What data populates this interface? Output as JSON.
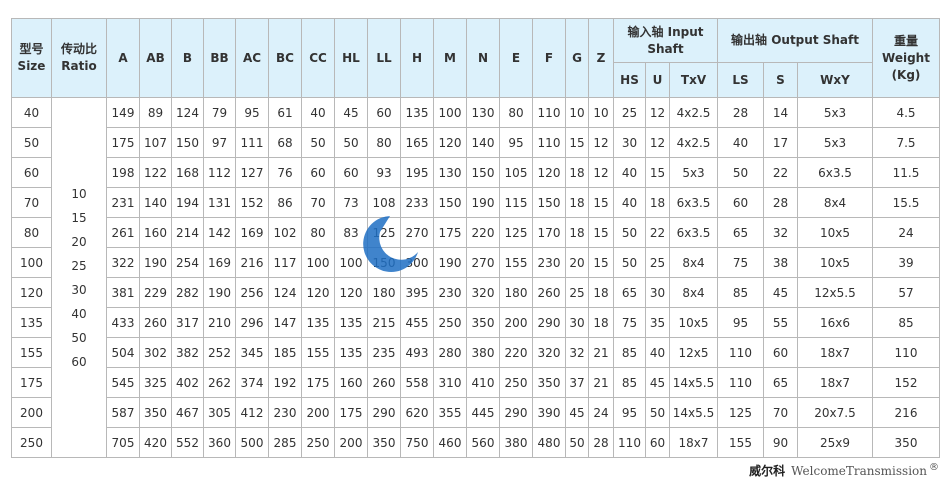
{
  "headers": {
    "size_cn": "型号",
    "size_en": "Size",
    "ratio_cn": "传动比",
    "ratio_en": "Ratio",
    "dims": [
      "A",
      "AB",
      "B",
      "BB",
      "AC",
      "BC",
      "CC",
      "HL",
      "LL",
      "H",
      "M",
      "N",
      "E",
      "F",
      "G",
      "Z"
    ],
    "input_cn": "输入轴",
    "input_en": "Input Shaft",
    "input_sub": [
      "HS",
      "U",
      "TxV"
    ],
    "output_cn": "输出轴",
    "output_en": "Output Shaft",
    "output_sub": [
      "LS",
      "S",
      "WxY"
    ],
    "weight_cn": "重量",
    "weight_en": "Weight",
    "weight_unit": "(Kg)"
  },
  "ratios": [
    "10",
    "15",
    "20",
    "25",
    "30",
    "40",
    "50",
    "60"
  ],
  "rows": [
    [
      "40",
      "149",
      "89",
      "124",
      "79",
      "95",
      "61",
      "40",
      "45",
      "60",
      "135",
      "100",
      "130",
      "80",
      "110",
      "10",
      "10",
      "25",
      "12",
      "4x2.5",
      "28",
      "14",
      "5x3",
      "4.5"
    ],
    [
      "50",
      "175",
      "107",
      "150",
      "97",
      "111",
      "68",
      "50",
      "50",
      "80",
      "165",
      "120",
      "140",
      "95",
      "110",
      "15",
      "12",
      "30",
      "12",
      "4x2.5",
      "40",
      "17",
      "5x3",
      "7.5"
    ],
    [
      "60",
      "198",
      "122",
      "168",
      "112",
      "127",
      "76",
      "60",
      "60",
      "93",
      "195",
      "130",
      "150",
      "105",
      "120",
      "18",
      "12",
      "40",
      "15",
      "5x3",
      "50",
      "22",
      "6x3.5",
      "11.5"
    ],
    [
      "70",
      "231",
      "140",
      "194",
      "131",
      "152",
      "86",
      "70",
      "73",
      "108",
      "233",
      "150",
      "190",
      "115",
      "150",
      "18",
      "15",
      "40",
      "18",
      "6x3.5",
      "60",
      "28",
      "8x4",
      "15.5"
    ],
    [
      "80",
      "261",
      "160",
      "214",
      "142",
      "169",
      "102",
      "80",
      "83",
      "125",
      "270",
      "175",
      "220",
      "125",
      "170",
      "18",
      "15",
      "50",
      "22",
      "6x3.5",
      "65",
      "32",
      "10x5",
      "24"
    ],
    [
      "100",
      "322",
      "190",
      "254",
      "169",
      "216",
      "117",
      "100",
      "100",
      "150",
      "300",
      "190",
      "270",
      "155",
      "230",
      "20",
      "15",
      "50",
      "25",
      "8x4",
      "75",
      "38",
      "10x5",
      "39"
    ],
    [
      "120",
      "381",
      "229",
      "282",
      "190",
      "256",
      "124",
      "120",
      "120",
      "180",
      "395",
      "230",
      "320",
      "180",
      "260",
      "25",
      "18",
      "65",
      "30",
      "8x4",
      "85",
      "45",
      "12x5.5",
      "57"
    ],
    [
      "135",
      "433",
      "260",
      "317",
      "210",
      "296",
      "147",
      "135",
      "135",
      "215",
      "455",
      "250",
      "350",
      "200",
      "290",
      "30",
      "18",
      "75",
      "35",
      "10x5",
      "95",
      "55",
      "16x6",
      "85"
    ],
    [
      "155",
      "504",
      "302",
      "382",
      "252",
      "345",
      "185",
      "155",
      "135",
      "235",
      "493",
      "280",
      "380",
      "220",
      "320",
      "32",
      "21",
      "85",
      "40",
      "12x5",
      "110",
      "60",
      "18x7",
      "110"
    ],
    [
      "175",
      "545",
      "325",
      "402",
      "262",
      "374",
      "192",
      "175",
      "160",
      "260",
      "558",
      "310",
      "410",
      "250",
      "350",
      "37",
      "21",
      "85",
      "45",
      "14x5.5",
      "110",
      "65",
      "18x7",
      "152"
    ],
    [
      "200",
      "587",
      "350",
      "467",
      "305",
      "412",
      "230",
      "200",
      "175",
      "290",
      "620",
      "355",
      "445",
      "290",
      "390",
      "45",
      "24",
      "95",
      "50",
      "14x5.5",
      "125",
      "70",
      "20x7.5",
      "216"
    ],
    [
      "250",
      "705",
      "420",
      "552",
      "360",
      "500",
      "285",
      "250",
      "200",
      "350",
      "750",
      "460",
      "560",
      "380",
      "480",
      "50",
      "28",
      "110",
      "60",
      "18x7",
      "155",
      "90",
      "25x9",
      "350"
    ]
  ],
  "watermark": {
    "brand_cn": "威尔科",
    "brand_en": "WelcomeTransmission",
    "mark": "®"
  },
  "colors": {
    "header_bg": "#dcf1fb",
    "border": "#b8b8b8"
  }
}
